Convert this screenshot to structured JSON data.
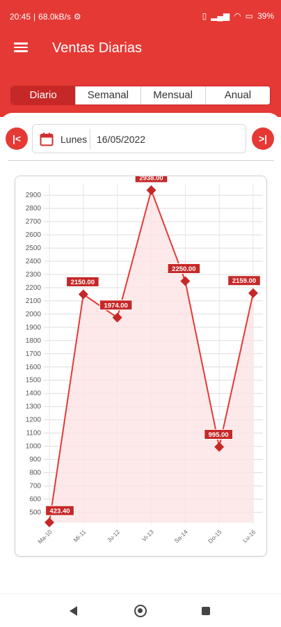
{
  "status_bar": {
    "time": "20:45",
    "network_speed": "68.0kB/s",
    "battery": "39"
  },
  "app_bar": {
    "title": "Ventas Diarias"
  },
  "tabs": [
    {
      "label": "Diario",
      "active": true
    },
    {
      "label": "Semanal",
      "active": false
    },
    {
      "label": "Mensual",
      "active": false
    },
    {
      "label": "Anual",
      "active": false
    }
  ],
  "date_selector": {
    "day_label": "Lunes",
    "date_value": "16/05/2022"
  },
  "colors": {
    "primary": "#e53935",
    "dark": "#c62828",
    "fill": "#fde4e3"
  },
  "chart_data": {
    "type": "area",
    "categories": [
      "Ma-10",
      "Mi-11",
      "Ju-12",
      "Vi-13",
      "Sa-14",
      "Do-15",
      "Lu-16"
    ],
    "series": [
      {
        "values": [
          423.4,
          2150.0,
          1974.0,
          2938.0,
          2250.0,
          995.0,
          2159.0
        ]
      }
    ],
    "data_labels": [
      "423.40",
      "2150.00",
      "1974.00",
      "2938.00",
      "2250.00",
      "995.00",
      "2159.00"
    ],
    "y_ticks": [
      500,
      600,
      700,
      800,
      900,
      1000,
      1100,
      1200,
      1300,
      1400,
      1500,
      1600,
      1700,
      1800,
      1900,
      2000,
      2100,
      2200,
      2300,
      2400,
      2500,
      2600,
      2700,
      2800,
      2900
    ],
    "ylim": [
      423,
      2938
    ],
    "grid": true,
    "legend": false
  }
}
